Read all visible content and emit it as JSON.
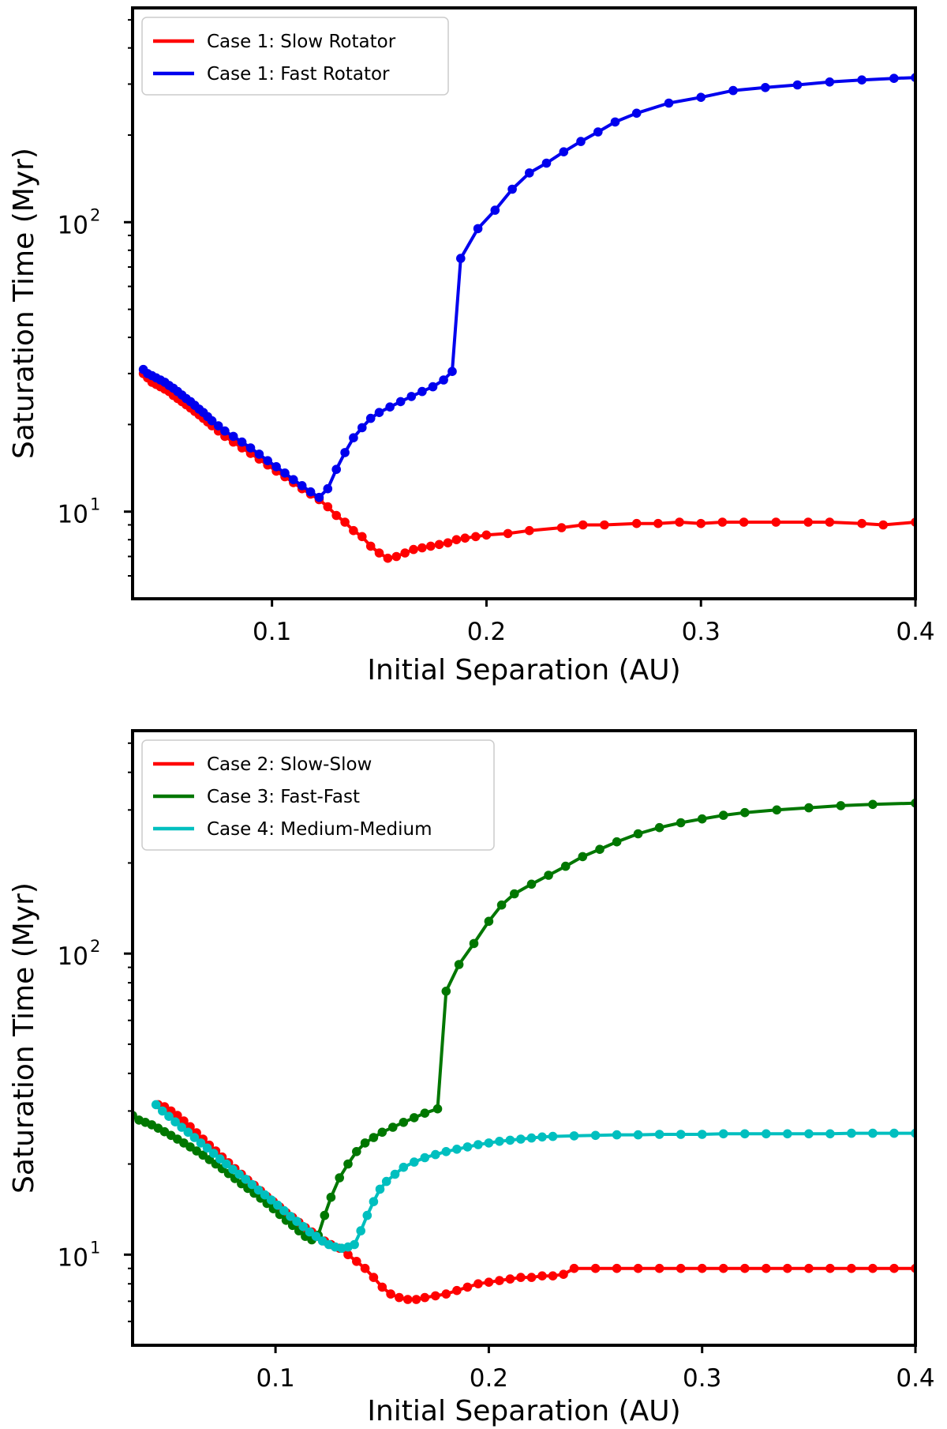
{
  "chart_data": [
    {
      "type": "line",
      "title": "",
      "xlabel": "Initial Separation (AU)",
      "ylabel": "Saturation Time (Myr)",
      "xlim": [
        0.035,
        0.4
      ],
      "ylim": [
        5,
        550
      ],
      "yscale": "log",
      "xticks": [
        "0.1",
        "0.2",
        "0.3",
        "0.4"
      ],
      "yticks": [
        {
          "base": "10",
          "exp": "1"
        },
        {
          "base": "10",
          "exp": "2"
        }
      ],
      "legend_loc": "upper-left",
      "series": [
        {
          "name": "Case 1: Slow Rotator",
          "color": "#ff0000",
          "x": [
            0.04,
            0.042,
            0.044,
            0.046,
            0.048,
            0.05,
            0.052,
            0.054,
            0.056,
            0.058,
            0.06,
            0.062,
            0.064,
            0.066,
            0.068,
            0.07,
            0.072,
            0.075,
            0.078,
            0.082,
            0.086,
            0.09,
            0.094,
            0.098,
            0.102,
            0.106,
            0.11,
            0.114,
            0.118,
            0.122,
            0.126,
            0.13,
            0.134,
            0.138,
            0.142,
            0.146,
            0.15,
            0.154,
            0.158,
            0.162,
            0.166,
            0.17,
            0.174,
            0.178,
            0.182,
            0.186,
            0.19,
            0.195,
            0.2,
            0.21,
            0.22,
            0.235,
            0.245,
            0.255,
            0.27,
            0.28,
            0.29,
            0.3,
            0.31,
            0.32,
            0.335,
            0.35,
            0.36,
            0.375,
            0.385,
            0.4
          ],
          "y": [
            30,
            29,
            28,
            27.5,
            27,
            26.5,
            26,
            25.2,
            24.6,
            24,
            23.4,
            22.8,
            22.2,
            21.6,
            21,
            20.4,
            19.8,
            19,
            18.2,
            17.4,
            16.6,
            15.9,
            15.2,
            14.5,
            13.8,
            13.2,
            12.6,
            12,
            11.5,
            11,
            10.4,
            9.7,
            9.2,
            8.6,
            8.2,
            7.6,
            7.2,
            6.9,
            7,
            7.2,
            7.4,
            7.5,
            7.6,
            7.7,
            7.8,
            8.0,
            8.1,
            8.2,
            8.3,
            8.4,
            8.6,
            8.8,
            9.0,
            9.0,
            9.1,
            9.1,
            9.2,
            9.1,
            9.2,
            9.2,
            9.2,
            9.2,
            9.2,
            9.1,
            9.0,
            9.2
          ]
        },
        {
          "name": "Case 1: Fast Rotator",
          "color": "#0000ee",
          "x": [
            0.04,
            0.042,
            0.044,
            0.046,
            0.048,
            0.05,
            0.052,
            0.054,
            0.056,
            0.058,
            0.06,
            0.062,
            0.064,
            0.066,
            0.068,
            0.07,
            0.072,
            0.075,
            0.078,
            0.082,
            0.086,
            0.09,
            0.094,
            0.098,
            0.102,
            0.106,
            0.11,
            0.114,
            0.118,
            0.122,
            0.126,
            0.13,
            0.134,
            0.138,
            0.142,
            0.146,
            0.15,
            0.155,
            0.16,
            0.165,
            0.17,
            0.175,
            0.18,
            0.184,
            0.188,
            0.196,
            0.204,
            0.212,
            0.22,
            0.228,
            0.236,
            0.244,
            0.252,
            0.26,
            0.27,
            0.285,
            0.3,
            0.315,
            0.33,
            0.345,
            0.36,
            0.375,
            0.39,
            0.4
          ],
          "y": [
            31,
            30,
            29.5,
            29,
            28.5,
            28,
            27.3,
            26.7,
            26,
            25.3,
            24.6,
            24,
            23.3,
            22.6,
            22,
            21.3,
            20.6,
            19.8,
            19,
            18.2,
            17.4,
            16.6,
            15.8,
            15,
            14.3,
            13.6,
            12.9,
            12.3,
            11.7,
            11.2,
            12,
            14,
            16,
            18,
            19.5,
            21,
            22,
            23,
            24,
            25,
            26,
            27,
            28.5,
            30.5,
            75,
            95,
            110,
            130,
            148,
            160,
            175,
            190,
            205,
            222,
            238,
            258,
            270,
            285,
            292,
            298,
            305,
            310,
            314,
            316
          ]
        }
      ]
    },
    {
      "type": "line",
      "title": "",
      "xlabel": "Initial Separation (AU)",
      "ylabel": "Saturation Time (Myr)",
      "xlim": [
        0.033,
        0.4
      ],
      "ylim": [
        5,
        550
      ],
      "yscale": "log",
      "xticks": [
        "0.1",
        "0.2",
        "0.3",
        "0.4"
      ],
      "yticks": [
        {
          "base": "10",
          "exp": "1"
        },
        {
          "base": "10",
          "exp": "2"
        }
      ],
      "legend_loc": "upper-left",
      "series": [
        {
          "name": "Case 2: Slow-Slow",
          "color": "#ff0000",
          "x": [
            0.045,
            0.048,
            0.051,
            0.054,
            0.057,
            0.06,
            0.063,
            0.066,
            0.069,
            0.072,
            0.075,
            0.078,
            0.081,
            0.084,
            0.087,
            0.09,
            0.093,
            0.096,
            0.099,
            0.102,
            0.105,
            0.108,
            0.111,
            0.114,
            0.117,
            0.12,
            0.123,
            0.126,
            0.13,
            0.134,
            0.138,
            0.142,
            0.146,
            0.15,
            0.154,
            0.158,
            0.162,
            0.166,
            0.17,
            0.175,
            0.18,
            0.185,
            0.19,
            0.195,
            0.2,
            0.205,
            0.21,
            0.215,
            0.22,
            0.225,
            0.23,
            0.235,
            0.24,
            0.25,
            0.26,
            0.27,
            0.28,
            0.29,
            0.3,
            0.31,
            0.32,
            0.33,
            0.34,
            0.35,
            0.36,
            0.37,
            0.38,
            0.39,
            0.4
          ],
          "y": [
            31.5,
            31,
            30,
            29,
            27.8,
            26.6,
            25.4,
            24.2,
            23.1,
            22.1,
            21.1,
            20.2,
            19.3,
            18.5,
            17.7,
            17,
            16.3,
            15.6,
            15,
            14.4,
            13.8,
            13.3,
            12.8,
            12.3,
            11.9,
            11.5,
            11.1,
            10.8,
            10.5,
            10.0,
            9.5,
            9.0,
            8.4,
            7.8,
            7.4,
            7.2,
            7.1,
            7.1,
            7.2,
            7.3,
            7.4,
            7.6,
            7.8,
            8.0,
            8.1,
            8.2,
            8.3,
            8.4,
            8.4,
            8.5,
            8.5,
            8.6,
            9.0,
            9.0,
            9.0,
            9.0,
            9.0,
            9.0,
            9.0,
            9.0,
            9.0,
            9.0,
            9.0,
            9.0,
            9.0,
            9.0,
            9.0,
            9.0,
            9.0
          ]
        },
        {
          "name": "Case 3: Fast-Fast",
          "color": "#007700",
          "x": [
            0.033,
            0.036,
            0.039,
            0.042,
            0.045,
            0.048,
            0.051,
            0.054,
            0.057,
            0.06,
            0.063,
            0.066,
            0.069,
            0.072,
            0.075,
            0.078,
            0.081,
            0.084,
            0.087,
            0.09,
            0.093,
            0.096,
            0.099,
            0.102,
            0.105,
            0.108,
            0.111,
            0.114,
            0.117,
            0.12,
            0.123,
            0.126,
            0.13,
            0.134,
            0.138,
            0.142,
            0.146,
            0.15,
            0.155,
            0.16,
            0.165,
            0.17,
            0.176,
            0.18,
            0.186,
            0.193,
            0.2,
            0.206,
            0.212,
            0.22,
            0.228,
            0.236,
            0.244,
            0.252,
            0.26,
            0.27,
            0.28,
            0.29,
            0.3,
            0.31,
            0.32,
            0.335,
            0.35,
            0.365,
            0.38,
            0.4
          ],
          "y": [
            29,
            28,
            27.5,
            27,
            26.3,
            25.6,
            24.9,
            24.2,
            23.5,
            22.8,
            22.1,
            21.4,
            20.7,
            20,
            19.3,
            18.6,
            17.9,
            17.2,
            16.6,
            16,
            15.4,
            14.8,
            14.2,
            13.6,
            13,
            12.5,
            12,
            11.5,
            11.2,
            11.6,
            13.5,
            15.5,
            18,
            20,
            22,
            23.5,
            24.5,
            25.5,
            26.5,
            27.5,
            28.5,
            29.5,
            30.5,
            75,
            92,
            108,
            128,
            145,
            158,
            170,
            182,
            195,
            210,
            222,
            235,
            250,
            262,
            272,
            280,
            288,
            294,
            300,
            305,
            310,
            313,
            316
          ]
        },
        {
          "name": "Case 4: Medium-Medium",
          "color": "#00bfbf",
          "x": [
            0.044,
            0.047,
            0.05,
            0.053,
            0.056,
            0.059,
            0.062,
            0.065,
            0.068,
            0.071,
            0.074,
            0.077,
            0.08,
            0.083,
            0.086,
            0.089,
            0.092,
            0.095,
            0.098,
            0.101,
            0.104,
            0.107,
            0.11,
            0.113,
            0.116,
            0.119,
            0.122,
            0.125,
            0.128,
            0.131,
            0.134,
            0.137,
            0.14,
            0.143,
            0.146,
            0.149,
            0.152,
            0.156,
            0.16,
            0.165,
            0.17,
            0.175,
            0.18,
            0.185,
            0.19,
            0.195,
            0.2,
            0.205,
            0.21,
            0.215,
            0.22,
            0.225,
            0.23,
            0.24,
            0.25,
            0.26,
            0.27,
            0.28,
            0.29,
            0.3,
            0.31,
            0.32,
            0.33,
            0.34,
            0.35,
            0.36,
            0.37,
            0.38,
            0.39,
            0.4
          ],
          "y": [
            31.5,
            30,
            28.8,
            27.6,
            26.5,
            25.5,
            24.5,
            23.5,
            22.6,
            21.7,
            20.8,
            20,
            19.2,
            18.5,
            17.8,
            17.1,
            16.4,
            15.8,
            15.2,
            14.6,
            14.0,
            13.4,
            12.9,
            12.4,
            11.9,
            11.5,
            11.1,
            10.8,
            10.6,
            10.5,
            10.6,
            10.8,
            12,
            13.5,
            15,
            16.5,
            17.5,
            18.5,
            19.5,
            20.3,
            21,
            21.5,
            22,
            22.4,
            22.8,
            23.2,
            23.5,
            23.8,
            24,
            24.2,
            24.4,
            24.6,
            24.7,
            24.8,
            24.9,
            25,
            25,
            25.1,
            25.1,
            25.1,
            25.2,
            25.2,
            25.2,
            25.2,
            25.2,
            25.2,
            25.3,
            25.3,
            25.3,
            25.3
          ]
        }
      ]
    }
  ]
}
